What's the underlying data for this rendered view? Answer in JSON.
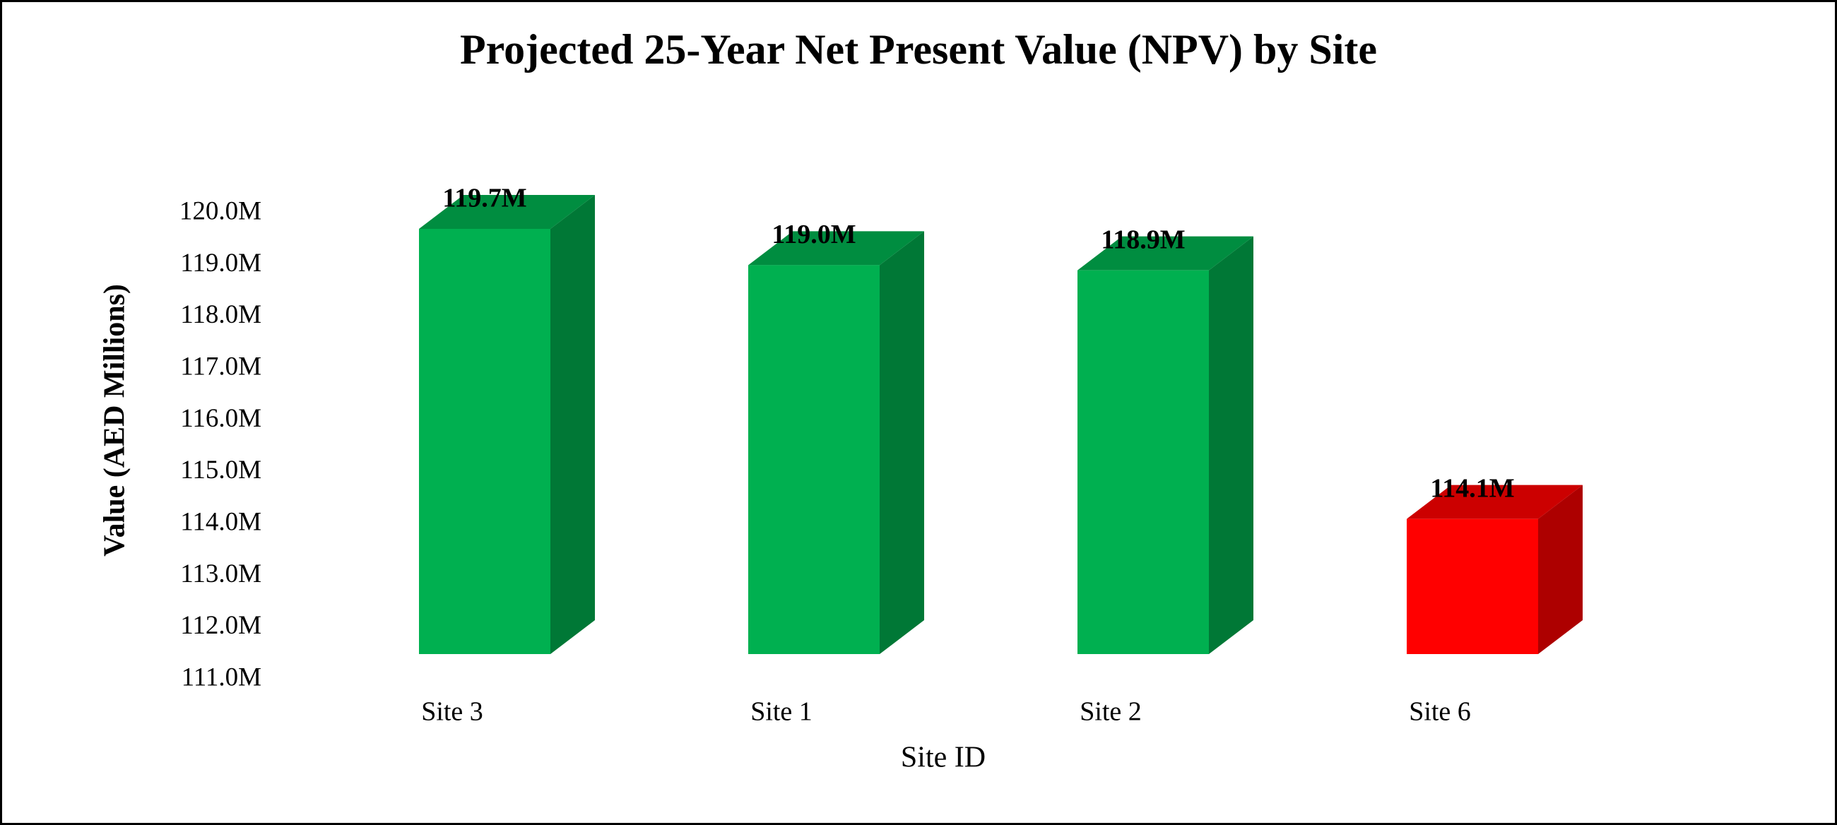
{
  "chart_data": {
    "type": "bar3d",
    "title": "Projected 25-Year Net Present Value (NPV) by Site",
    "x_label": "Site ID",
    "y_label": "Value (AED Millions)",
    "categories": [
      "Site 3",
      "Site 1",
      "Site 2",
      "Site 6"
    ],
    "values": [
      119.7,
      119.0,
      118.9,
      114.1
    ],
    "value_labels": [
      "119.7M",
      "119.0M",
      "118.9M",
      "114.1M"
    ],
    "colors": [
      "#00b050",
      "#00b050",
      "#00b050",
      "#ff0000"
    ],
    "ylim": [
      111,
      120
    ],
    "yticks": [
      {
        "value": 111,
        "label": "111.0M"
      },
      {
        "value": 112,
        "label": "112.0M"
      },
      {
        "value": 113,
        "label": "113.0M"
      },
      {
        "value": 114,
        "label": "114.0M"
      },
      {
        "value": 115,
        "label": "115.0M"
      },
      {
        "value": 116,
        "label": "116.0M"
      },
      {
        "value": 117,
        "label": "117.0M"
      },
      {
        "value": 118,
        "label": "118.0M"
      },
      {
        "value": 119,
        "label": "119.0M"
      },
      {
        "value": 120,
        "label": "120.0M"
      }
    ],
    "grid": false
  }
}
